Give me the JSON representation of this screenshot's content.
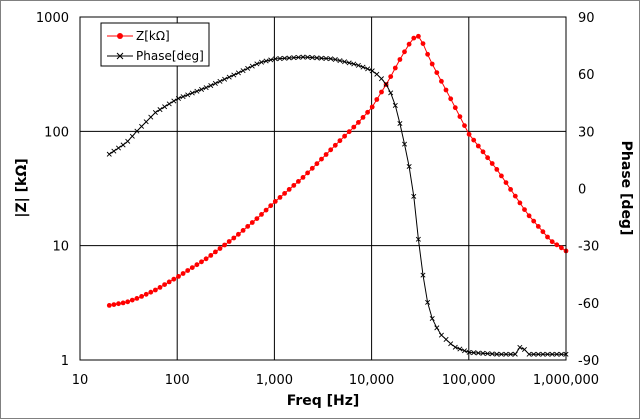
{
  "chart_data": {
    "type": "line",
    "title": "",
    "xlabel": "Freq [Hz]",
    "ylabel_left": "|Z| [kΩ]",
    "ylabel_right": "Phase [deg]",
    "x_scale": "log",
    "y_left_scale": "log",
    "xlim": [
      10,
      1000000
    ],
    "ylim_left": [
      1,
      1000
    ],
    "ylim_right": [
      -90,
      90
    ],
    "grid": true,
    "legend_position": "top-left",
    "x_ticks": [
      {
        "value": 10,
        "label": "10"
      },
      {
        "value": 100,
        "label": "100"
      },
      {
        "value": 1000,
        "label": "1,000"
      },
      {
        "value": 10000,
        "label": "10,000"
      },
      {
        "value": 100000,
        "label": "100,000"
      },
      {
        "value": 1000000,
        "label": "1,000,000"
      }
    ],
    "y_left_ticks": [
      {
        "value": 1,
        "label": "1"
      },
      {
        "value": 10,
        "label": "10"
      },
      {
        "value": 100,
        "label": "100"
      },
      {
        "value": 1000,
        "label": "1000"
      }
    ],
    "y_right_ticks": [
      {
        "value": 90,
        "label": "90"
      },
      {
        "value": 60,
        "label": "60"
      },
      {
        "value": 30,
        "label": "30"
      },
      {
        "value": 0,
        "label": "0"
      },
      {
        "value": -30,
        "label": "-30"
      },
      {
        "value": -60,
        "label": "-60"
      },
      {
        "value": -90,
        "label": "-90"
      }
    ],
    "series": [
      {
        "name": "Z[kΩ]",
        "axis": "left",
        "color": "#ff0000",
        "marker": "dot",
        "x": [
          20,
          30,
          40,
          60,
          100,
          200,
          400,
          700,
          1000,
          2000,
          4000,
          7000,
          10000,
          15000,
          20000,
          25000,
          29000,
          32000,
          40000,
          60000,
          100000,
          200000,
          400000,
          700000,
          1000000
        ],
        "y": [
          3.0,
          3.2,
          3.5,
          4.1,
          5.3,
          7.7,
          12,
          18,
          24,
          40,
          72,
          115,
          160,
          280,
          440,
          600,
          700,
          650,
          420,
          220,
          95,
          45,
          19,
          11,
          9
        ]
      },
      {
        "name": "Phase[deg]",
        "axis": "right",
        "color": "#000000",
        "marker": "x",
        "x": [
          20,
          30,
          40,
          60,
          100,
          200,
          400,
          700,
          1000,
          2000,
          4000,
          7000,
          10000,
          12000,
          15000,
          18000,
          20000,
          23000,
          26000,
          28000,
          30000,
          33000,
          36000,
          40000,
          50000,
          70000,
          100000,
          200000,
          300000,
          350000,
          400000,
          600000,
          1000000
        ],
        "y": [
          18,
          24,
          31,
          40,
          47,
          53,
          60,
          66,
          68,
          69,
          68,
          65,
          62,
          59,
          53,
          42,
          32,
          18,
          4,
          -10,
          -25,
          -42,
          -55,
          -66,
          -76,
          -83,
          -86,
          -87,
          -87,
          -82,
          -87,
          -87,
          -87
        ]
      }
    ]
  }
}
